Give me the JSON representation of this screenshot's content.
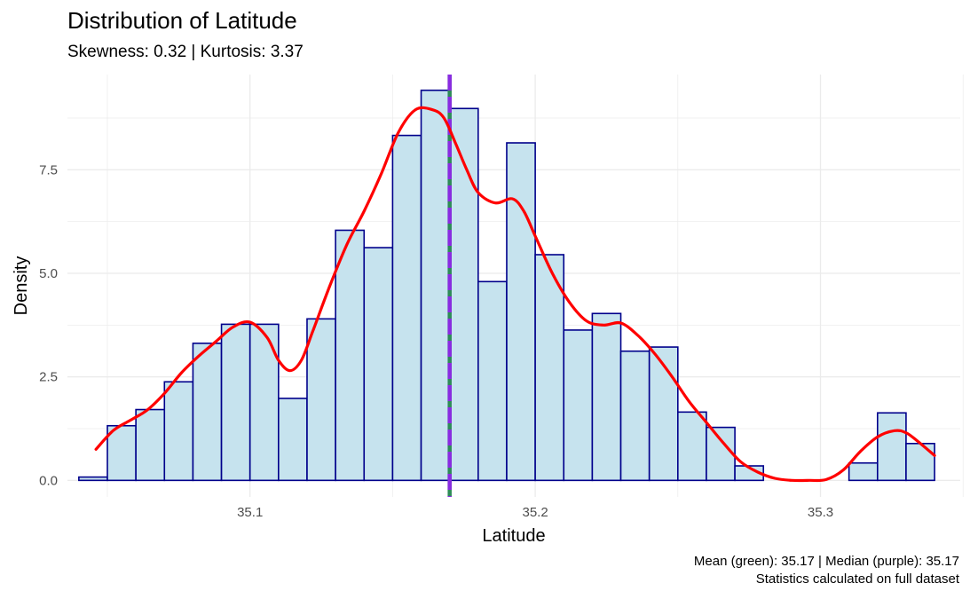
{
  "title": "Distribution of Latitude",
  "subtitle": "Skewness: 0.32 | Kurtosis: 3.37",
  "caption_line1": "Mean (green): 35.17 | Median (purple): 35.17",
  "caption_line2": "Statistics calculated on full dataset",
  "colors": {
    "bar_fill": "#c6e3ee",
    "bar_stroke": "#00008b",
    "density": "#ff0000",
    "mean": "#2e8b57",
    "median": "#8a2be2",
    "grid": "#ebebeb"
  },
  "chart_data": {
    "type": "bar",
    "title": "Distribution of Latitude",
    "subtitle": "Skewness: 0.32 | Kurtosis: 3.37",
    "xlabel": "Latitude",
    "ylabel": "Density",
    "xlim": [
      35.036,
      35.349
    ],
    "ylim": [
      -0.4,
      9.8
    ],
    "x_ticks": [
      35.1,
      35.2,
      35.3
    ],
    "x_tick_labels": [
      "35.1",
      "35.2",
      "35.3"
    ],
    "y_ticks": [
      0,
      2.5,
      5,
      7.5
    ],
    "y_tick_labels": [
      "0.0",
      "2.5",
      "5.0",
      "7.5"
    ],
    "grid": true,
    "bin_width": 0.01,
    "bins": [
      {
        "x0": 35.04,
        "x1": 35.05,
        "density": 0.08
      },
      {
        "x0": 35.05,
        "x1": 35.06,
        "density": 1.32
      },
      {
        "x0": 35.06,
        "x1": 35.07,
        "density": 1.71
      },
      {
        "x0": 35.07,
        "x1": 35.08,
        "density": 2.38
      },
      {
        "x0": 35.08,
        "x1": 35.09,
        "density": 3.31
      },
      {
        "x0": 35.09,
        "x1": 35.1,
        "density": 3.77
      },
      {
        "x0": 35.1,
        "x1": 35.11,
        "density": 3.77
      },
      {
        "x0": 35.11,
        "x1": 35.12,
        "density": 1.98
      },
      {
        "x0": 35.12,
        "x1": 35.13,
        "density": 3.9
      },
      {
        "x0": 35.13,
        "x1": 35.14,
        "density": 6.04
      },
      {
        "x0": 35.14,
        "x1": 35.15,
        "density": 5.62
      },
      {
        "x0": 35.15,
        "x1": 35.16,
        "density": 8.33
      },
      {
        "x0": 35.16,
        "x1": 35.17,
        "density": 9.42
      },
      {
        "x0": 35.17,
        "x1": 35.18,
        "density": 8.98
      },
      {
        "x0": 35.18,
        "x1": 35.19,
        "density": 4.8
      },
      {
        "x0": 35.19,
        "x1": 35.2,
        "density": 8.15
      },
      {
        "x0": 35.2,
        "x1": 35.21,
        "density": 5.45
      },
      {
        "x0": 35.21,
        "x1": 35.22,
        "density": 3.63
      },
      {
        "x0": 35.22,
        "x1": 35.23,
        "density": 4.03
      },
      {
        "x0": 35.23,
        "x1": 35.24,
        "density": 3.12
      },
      {
        "x0": 35.24,
        "x1": 35.25,
        "density": 3.22
      },
      {
        "x0": 35.25,
        "x1": 35.26,
        "density": 1.65
      },
      {
        "x0": 35.26,
        "x1": 35.27,
        "density": 1.28
      },
      {
        "x0": 35.27,
        "x1": 35.28,
        "density": 0.35
      },
      {
        "x0": 35.31,
        "x1": 35.32,
        "density": 0.42
      },
      {
        "x0": 35.32,
        "x1": 35.33,
        "density": 1.63
      },
      {
        "x0": 35.33,
        "x1": 35.34,
        "density": 0.89
      }
    ],
    "density_curve": {
      "x": [
        35.046,
        35.052,
        35.058,
        35.064,
        35.07,
        35.076,
        35.082,
        35.088,
        35.094,
        35.1,
        35.106,
        35.11,
        35.114,
        35.118,
        35.122,
        35.128,
        35.134,
        35.14,
        35.146,
        35.152,
        35.158,
        35.164,
        35.168,
        35.172,
        35.176,
        35.18,
        35.186,
        35.192,
        35.196,
        35.2,
        35.206,
        35.212,
        35.218,
        35.224,
        35.23,
        35.236,
        35.242,
        35.248,
        35.254,
        35.26,
        35.266,
        35.272,
        35.278,
        35.284,
        35.29,
        35.296,
        35.302,
        35.308,
        35.314,
        35.32,
        35.326,
        35.33,
        35.334,
        35.34
      ],
      "y": [
        0.75,
        1.2,
        1.45,
        1.7,
        2.1,
        2.6,
        3.0,
        3.35,
        3.7,
        3.82,
        3.45,
        2.9,
        2.65,
        2.9,
        3.6,
        4.7,
        5.7,
        6.5,
        7.4,
        8.4,
        8.95,
        8.95,
        8.75,
        8.15,
        7.5,
        6.95,
        6.7,
        6.8,
        6.5,
        5.9,
        5.0,
        4.3,
        3.85,
        3.75,
        3.8,
        3.5,
        3.05,
        2.5,
        1.9,
        1.4,
        0.9,
        0.45,
        0.2,
        0.05,
        0.0,
        0.0,
        0.02,
        0.25,
        0.7,
        1.05,
        1.2,
        1.15,
        0.95,
        0.6
      ]
    },
    "mean": {
      "label": "Mean",
      "value": 35.17
    },
    "median": {
      "label": "Median",
      "value": 35.17
    }
  }
}
